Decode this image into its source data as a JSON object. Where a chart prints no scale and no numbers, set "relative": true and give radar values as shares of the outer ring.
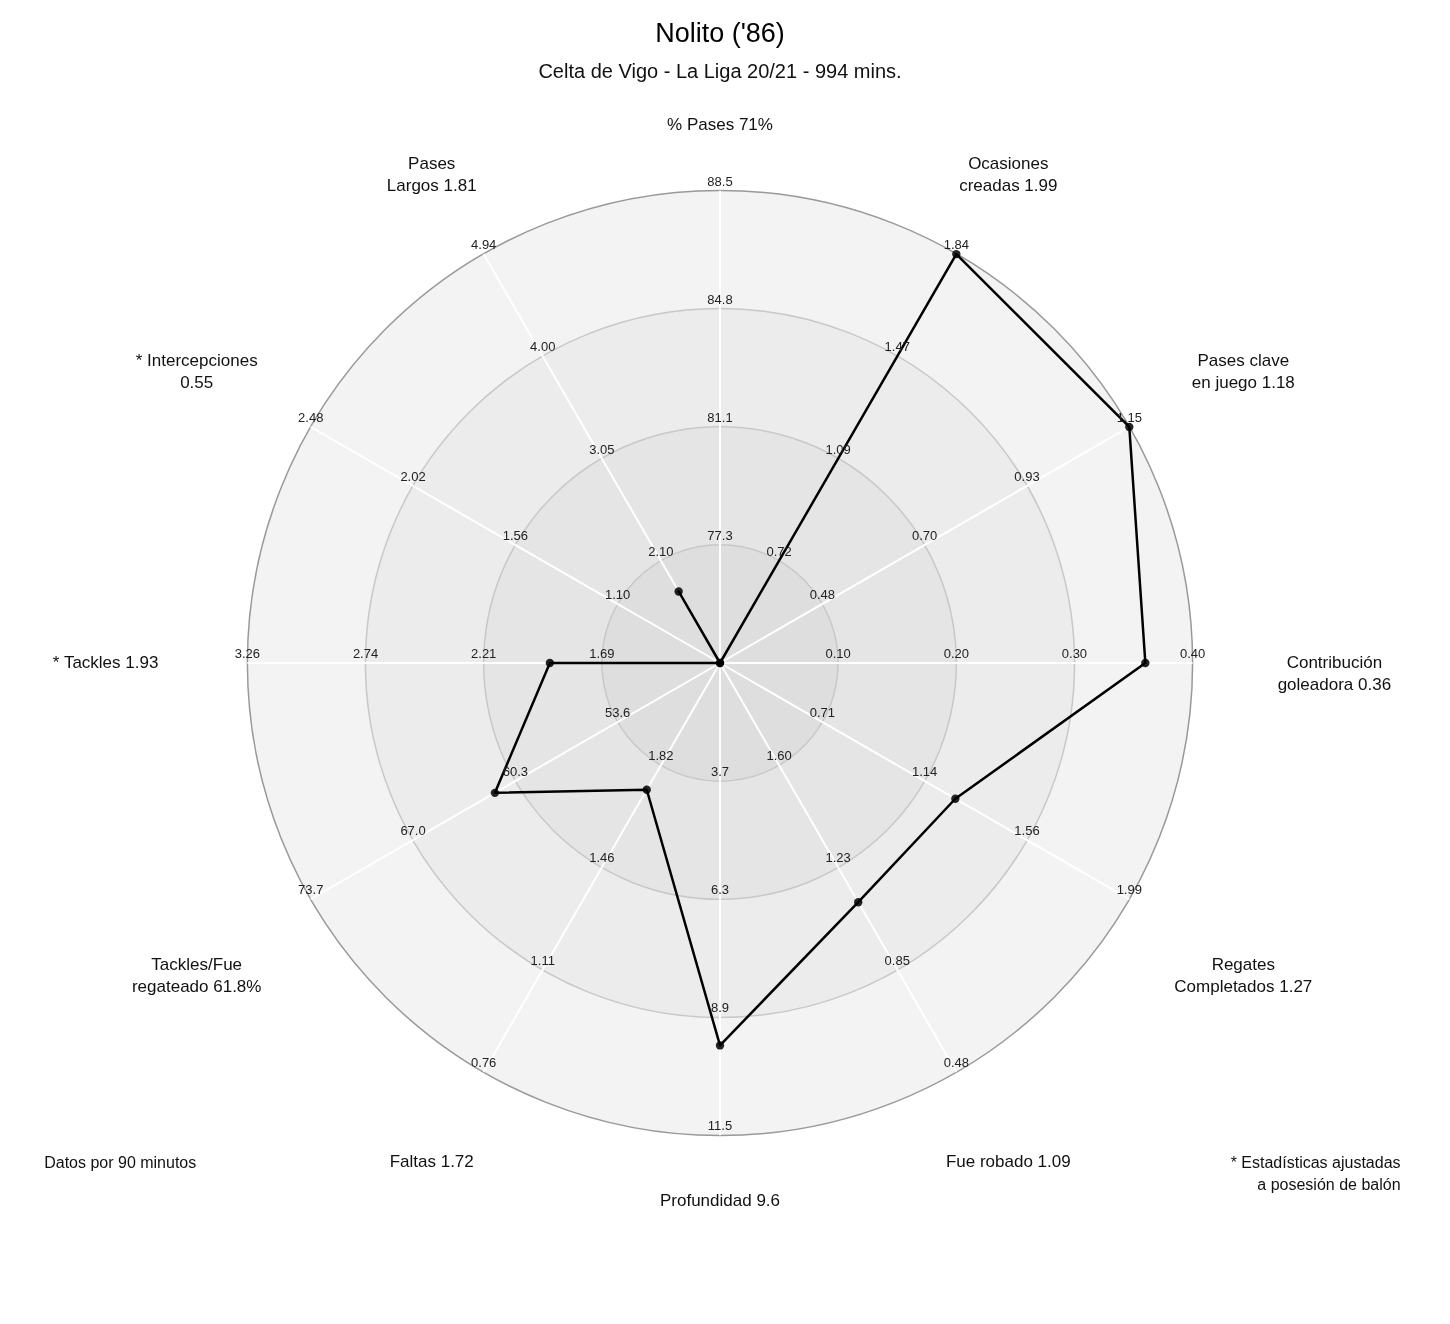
{
  "chart_data": {
    "type": "radar",
    "title": "Nolito ('86)",
    "subtitle": "Celta de Vigo - La Liga 20/21 - 994 mins.",
    "relative": true,
    "grid": true,
    "marker": "circle",
    "categories": [
      "% Pases 71%",
      "Ocasiones creadas 1.99",
      "Pases clave en juego 1.18",
      "Contribución goleadora 0.36",
      "Regates Completados 1.27",
      "Fue robado 1.09",
      "Profundidad 9.6",
      "Faltas 1.72",
      "Tackles/Fue regateado 61.8%",
      "* Tackles 1.93",
      "* Intercepciones 0.55",
      "Pases Largos 1.81"
    ],
    "series": [
      {
        "color": "#000000",
        "values": [
          0,
          1,
          1,
          0.9,
          0.575,
          0.585,
          0.81,
          0.31,
          0.55,
          0.36,
          0,
          0.175
        ]
      }
    ],
    "annotations": [
      "77.3",
      "81.1",
      "84.8",
      "88.5",
      "0.72",
      "1.09",
      "1.47",
      "1.84",
      "0.48",
      "0.70",
      "0.93",
      "1.15",
      "0.10",
      "0.20",
      "0.30",
      "0.40",
      "0.71",
      "1.14",
      "1.56",
      "1.99",
      "1.60",
      "1.23",
      "0.85",
      "0.48",
      "3.7",
      "6.3",
      "8.9",
      "11.5",
      "1.82",
      "1.46",
      "1.11",
      "0.76",
      "53.6",
      "60.3",
      "67.0",
      "73.7",
      "1.69",
      "2.21",
      "2.74",
      "3.26",
      "1.10",
      "1.56",
      "2.02",
      "2.48",
      "2.10",
      "3.05",
      "4.00",
      "4.94",
      "Datos por 90 minutos",
      "* Estadísticas ajustadas a posesión de balón"
    ]
  }
}
